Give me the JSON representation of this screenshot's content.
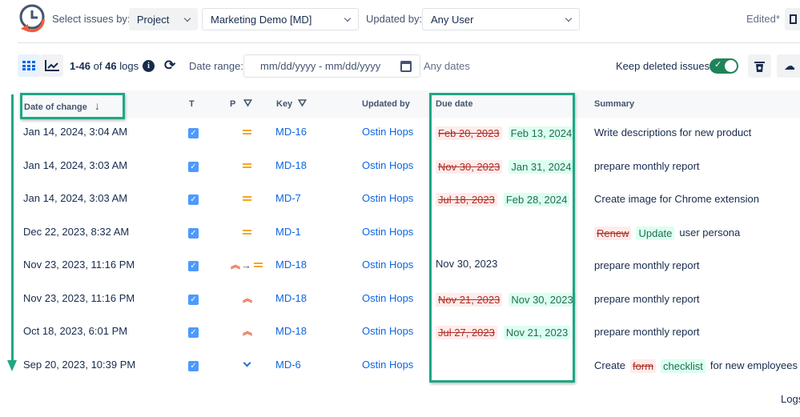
{
  "header": {
    "select_label": "Select issues by:",
    "select_by": "Project",
    "project": "Marketing Demo [MD]",
    "updated_by_label": "Updated by:",
    "updated_by": "Any User",
    "edited": "Edited*"
  },
  "toolbar": {
    "range_start": "1-46",
    "of": "of",
    "total": "46",
    "logs": "logs",
    "date_range_label": "Date range:",
    "date_placeholder": "mm/dd/yyyy - mm/dd/yyyy",
    "any_dates": "Any dates",
    "keep_deleted": "Keep deleted issues",
    "keep_deleted_on": true
  },
  "columns": {
    "date": "Date of change",
    "t": "T",
    "p": "P",
    "key": "Key",
    "updated_by": "Updated by",
    "due": "Due date",
    "summary": "Summary"
  },
  "rows": [
    {
      "date": "Jan 14, 2024, 3:04 AM",
      "priority": [
        "medium"
      ],
      "key": "MD-16",
      "user": "Ostin Hops",
      "due_old": "Feb 20, 2023",
      "due_new": "Feb 13, 2024",
      "summary": [
        {
          "t": "Write descriptions for new product"
        }
      ]
    },
    {
      "date": "Jan 14, 2024, 3:03 AM",
      "priority": [
        "medium"
      ],
      "key": "MD-18",
      "user": "Ostin Hops",
      "due_old": "Nov 30, 2023",
      "due_new": "Jan 31, 2024",
      "summary": [
        {
          "t": "prepare monthly report"
        }
      ]
    },
    {
      "date": "Jan 14, 2024, 3:03 AM",
      "priority": [
        "medium"
      ],
      "key": "MD-7",
      "user": "Ostin Hops",
      "due_old": "Jul 18, 2023",
      "due_new": "Feb 28, 2024",
      "summary": [
        {
          "t": "Create image for Chrome extension"
        }
      ]
    },
    {
      "date": "Dec 22, 2023, 8:32 AM",
      "priority": [
        "medium"
      ],
      "key": "MD-1",
      "user": "Ostin Hops",
      "summary": [
        {
          "t": "Renew",
          "k": "del"
        },
        {
          "t": "Update",
          "k": "add"
        },
        {
          "t": "user persona"
        }
      ]
    },
    {
      "date": "Nov 23, 2023, 11:16 PM",
      "priority": [
        "highest",
        "arrow",
        "medium"
      ],
      "key": "MD-18",
      "user": "Ostin Hops",
      "due": "Nov 30, 2023",
      "summary": [
        {
          "t": "prepare monthly report"
        }
      ]
    },
    {
      "date": "Nov 23, 2023, 11:16 PM",
      "priority": [
        "highest"
      ],
      "key": "MD-18",
      "user": "Ostin Hops",
      "due_old": "Nov 21, 2023",
      "due_new": "Nov 30, 2023",
      "summary": [
        {
          "t": "prepare monthly report"
        }
      ]
    },
    {
      "date": "Oct 18, 2023, 6:01 PM",
      "priority": [
        "highest"
      ],
      "key": "MD-18",
      "user": "Ostin Hops",
      "due_old": "Jul 27, 2023",
      "due_new": "Nov 21, 2023",
      "summary": [
        {
          "t": "prepare monthly report"
        }
      ]
    },
    {
      "date": "Sep 20, 2023, 10:39 PM",
      "priority": [
        "low"
      ],
      "key": "MD-6",
      "user": "Ostin Hops",
      "summary": [
        {
          "t": "Create"
        },
        {
          "t": "form",
          "k": "del"
        },
        {
          "t": "checklist",
          "k": "add"
        },
        {
          "t": "for new employees"
        }
      ]
    }
  ],
  "footer": {
    "logs": "Logs"
  },
  "colors": {
    "accent": "#1ea784",
    "link": "#0c66e4",
    "toggle": "#1f845a"
  }
}
